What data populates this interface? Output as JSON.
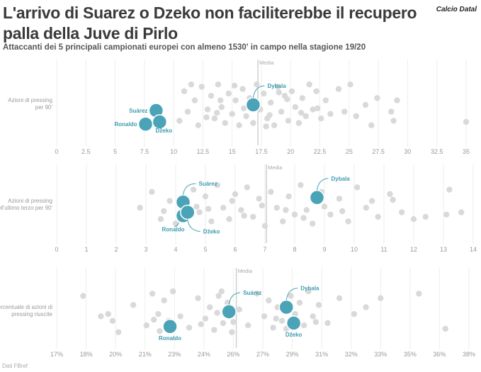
{
  "title": "L'arrivo di Suarez o Dzeko non faciliterebbe il recupero palla della Juve di Pirlo",
  "subtitle": "Attaccanti dei 5 principali campionati europei con almeno 1530' in campo nella stagione 19/20",
  "brand": "Calcio Datal",
  "source": "Dati FBref",
  "colors": {
    "accent": "#4aa3b6",
    "accent_stroke": "#ffffff",
    "dot": "#d9d9d9",
    "median": "#cfcfcf",
    "grid": "#eeeeee"
  },
  "chart_data": [
    {
      "type": "scatter",
      "ylabel": "Azioni di pressing per 90'",
      "median_label": "Media",
      "median": 17.2,
      "xlim": [
        0,
        35
      ],
      "ticks": [
        0,
        2.5,
        5,
        7.5,
        10,
        12.5,
        15,
        17.5,
        20,
        22.5,
        25,
        27.5,
        30,
        32.5,
        35
      ],
      "tick_labels": [
        "0",
        "2.5",
        "5",
        "7.5",
        "10",
        "12.5",
        "15",
        "17.5",
        "20",
        "22.5",
        "25",
        "27.5",
        "30",
        "32.5",
        "35"
      ],
      "highlights": [
        {
          "name": "Dybala",
          "x": 16.8,
          "jitter": 0.0
        },
        {
          "name": "Suárez",
          "x": 8.5,
          "jitter": 0.25
        },
        {
          "name": "Ronaldo",
          "x": 7.6,
          "jitter": 0.85
        },
        {
          "name": "Džeko",
          "x": 8.8,
          "jitter": 0.75
        }
      ],
      "others": [
        [
          10.9,
          -0.6
        ],
        [
          11.2,
          0.3
        ],
        [
          10.5,
          0.7
        ],
        [
          11.8,
          -0.2
        ],
        [
          12.1,
          0.9
        ],
        [
          12.4,
          -0.8
        ],
        [
          12.9,
          0.2
        ],
        [
          13.2,
          -0.4
        ],
        [
          13.5,
          0.6
        ],
        [
          13.8,
          -0.9
        ],
        [
          14.1,
          0.1
        ],
        [
          14.4,
          0.8
        ],
        [
          14.7,
          -0.5
        ],
        [
          15.0,
          0.4
        ],
        [
          15.3,
          -0.2
        ],
        [
          15.6,
          0.9
        ],
        [
          15.9,
          -0.7
        ],
        [
          16.2,
          0.5
        ],
        [
          16.5,
          -0.3
        ],
        [
          16.8,
          0.8
        ],
        [
          17.1,
          -0.9
        ],
        [
          17.4,
          0.2
        ],
        [
          17.7,
          -0.5
        ],
        [
          18.0,
          0.6
        ],
        [
          18.3,
          -0.1
        ],
        [
          18.6,
          0.9
        ],
        [
          18.9,
          -0.8
        ],
        [
          19.2,
          0.3
        ],
        [
          19.5,
          -0.4
        ],
        [
          19.8,
          0.7
        ],
        [
          20.1,
          -0.6
        ],
        [
          20.4,
          0.1
        ],
        [
          20.7,
          0.8
        ],
        [
          21.0,
          -0.3
        ],
        [
          21.3,
          0.5
        ],
        [
          21.6,
          -0.9
        ],
        [
          21.9,
          0.2
        ],
        [
          22.2,
          -0.6
        ],
        [
          22.6,
          0.6
        ],
        [
          23.0,
          -0.2
        ],
        [
          23.4,
          0.4
        ],
        [
          24.1,
          -0.7
        ],
        [
          24.6,
          0.3
        ],
        [
          25.1,
          -0.9
        ],
        [
          25.6,
          0.5
        ],
        [
          26.4,
          0.0
        ],
        [
          26.9,
          0.9
        ],
        [
          27.4,
          -0.3
        ],
        [
          28.6,
          0.3
        ],
        [
          28.8,
          0.7
        ],
        [
          29.1,
          -0.2
        ],
        [
          35.0,
          0.75
        ],
        [
          14.0,
          -0.2
        ],
        [
          16.0,
          0.15
        ],
        [
          18.2,
          0.45
        ],
        [
          19.0,
          -0.55
        ],
        [
          12.8,
          0.55
        ],
        [
          15.2,
          -0.85
        ],
        [
          17.9,
          0.95
        ],
        [
          20.9,
          0.35
        ],
        [
          13.7,
          0.35
        ],
        [
          19.7,
          -0.25
        ],
        [
          22.3,
          0.15
        ],
        [
          11.5,
          -0.9
        ]
      ]
    },
    {
      "type": "scatter",
      "ylabel": "Azioni di pressing nell'ultimo terzo per 90'",
      "median_label": "Media",
      "median": 7.05,
      "xlim": [
        0,
        14
      ],
      "ticks": [
        0,
        1,
        2,
        3,
        4,
        5,
        6,
        7,
        8,
        9,
        10,
        11,
        12,
        13,
        14
      ],
      "tick_labels": [
        "0",
        "1",
        "2",
        "3",
        "4",
        "5",
        "6",
        "7",
        "8",
        "9",
        "10",
        "11",
        "12",
        "13",
        "14"
      ],
      "highlights": [
        {
          "name": "Dybala",
          "x": 8.75,
          "jitter": -0.35
        },
        {
          "name": "Suárez",
          "x": 4.25,
          "jitter": -0.15
        },
        {
          "name": "Ronaldo",
          "x": 4.25,
          "jitter": 0.45
        },
        {
          "name": "Džeko",
          "x": 4.4,
          "jitter": 0.3
        }
      ],
      "others": [
        [
          2.8,
          0.1
        ],
        [
          3.2,
          -0.6
        ],
        [
          3.5,
          0.6
        ],
        [
          3.8,
          -0.2
        ],
        [
          4.0,
          0.8
        ],
        [
          4.6,
          -0.7
        ],
        [
          4.8,
          0.3
        ],
        [
          5.0,
          -0.4
        ],
        [
          5.2,
          0.7
        ],
        [
          5.4,
          -0.9
        ],
        [
          5.6,
          0.1
        ],
        [
          5.8,
          0.6
        ],
        [
          6.0,
          -0.5
        ],
        [
          6.2,
          0.2
        ],
        [
          6.4,
          -0.8
        ],
        [
          6.6,
          0.5
        ],
        [
          6.8,
          -0.3
        ],
        [
          7.0,
          0.9
        ],
        [
          7.2,
          -0.6
        ],
        [
          7.4,
          0.1
        ],
        [
          7.6,
          0.7
        ],
        [
          7.8,
          -0.4
        ],
        [
          8.0,
          0.4
        ],
        [
          8.2,
          -0.9
        ],
        [
          8.4,
          0.2
        ],
        [
          8.6,
          0.8
        ],
        [
          8.9,
          -0.6
        ],
        [
          9.2,
          0.4
        ],
        [
          9.5,
          -0.3
        ],
        [
          9.8,
          0.7
        ],
        [
          10.1,
          -0.8
        ],
        [
          10.4,
          0.1
        ],
        [
          10.8,
          0.5
        ],
        [
          11.2,
          -0.5
        ],
        [
          11.6,
          0.3
        ],
        [
          12.0,
          0.6
        ],
        [
          12.4,
          0.5
        ],
        [
          13.1,
          0.4
        ],
        [
          13.2,
          -0.7
        ],
        [
          13.6,
          0.3
        ],
        [
          5.1,
          0.15
        ],
        [
          6.3,
          0.45
        ],
        [
          7.7,
          0.2
        ],
        [
          9.0,
          0.05
        ],
        [
          5.9,
          -0.2
        ],
        [
          3.6,
          0.25
        ],
        [
          8.3,
          0.55
        ],
        [
          10.6,
          -0.2
        ],
        [
          6.9,
          0.0
        ],
        [
          4.7,
          0.05
        ],
        [
          9.6,
          0.25
        ],
        [
          11.3,
          -0.25
        ]
      ]
    },
    {
      "type": "scatter",
      "ylabel": "Percentuale di azioni di pressing riuscite",
      "median_label": "Media",
      "median": 26.1,
      "xlim": [
        17,
        38
      ],
      "ticks": [
        17,
        18,
        20,
        21,
        23,
        24,
        26,
        27,
        29,
        31,
        32,
        33,
        35,
        36,
        38
      ],
      "tick_labels": [
        "17%",
        "18%",
        "20%",
        "21%",
        "23%",
        "24%",
        "26%",
        "27%",
        "29%",
        "31%",
        "32%",
        "33%",
        "35%",
        "36%",
        "38%"
      ],
      "highlights": [
        {
          "name": "Suárez",
          "x": 25.7,
          "jitter": 0.0
        },
        {
          "name": "Dybala",
          "x": 28.6,
          "jitter": -0.2
        },
        {
          "name": "Ronaldo",
          "x": 22.7,
          "jitter": 0.65
        },
        {
          "name": "Džeko",
          "x": 29.1,
          "jitter": 0.5
        }
      ],
      "others": [
        [
          17.9,
          -0.7
        ],
        [
          19.0,
          0.2
        ],
        [
          19.8,
          0.4
        ],
        [
          20.1,
          0.9
        ],
        [
          20.6,
          -0.3
        ],
        [
          21.1,
          0.6
        ],
        [
          21.5,
          -0.8
        ],
        [
          21.9,
          0.1
        ],
        [
          22.3,
          -0.5
        ],
        [
          22.6,
          0.4
        ],
        [
          22.9,
          -0.9
        ],
        [
          23.2,
          0.2
        ],
        [
          23.5,
          0.7
        ],
        [
          23.8,
          -0.6
        ],
        [
          24.1,
          0.3
        ],
        [
          24.4,
          -0.2
        ],
        [
          24.7,
          0.8
        ],
        [
          25.0,
          -0.7
        ],
        [
          25.3,
          0.5
        ],
        [
          25.6,
          -0.4
        ],
        [
          25.9,
          0.9
        ],
        [
          26.2,
          -0.1
        ],
        [
          26.5,
          0.6
        ],
        [
          26.8,
          -0.8
        ],
        [
          27.1,
          0.2
        ],
        [
          27.4,
          -0.5
        ],
        [
          27.7,
          0.7
        ],
        [
          28.0,
          -0.2
        ],
        [
          28.3,
          0.4
        ],
        [
          28.9,
          -0.7
        ],
        [
          29.2,
          0.1
        ],
        [
          29.5,
          -0.4
        ],
        [
          29.8,
          0.6
        ],
        [
          30.1,
          -0.9
        ],
        [
          30.4,
          0.2
        ],
        [
          30.8,
          -0.3
        ],
        [
          31.2,
          0.5
        ],
        [
          31.6,
          -0.6
        ],
        [
          32.1,
          0.1
        ],
        [
          32.5,
          -0.2
        ],
        [
          33.0,
          -0.6
        ],
        [
          35.3,
          -0.8
        ],
        [
          36.4,
          0.75
        ],
        [
          19.5,
          0.1
        ],
        [
          22.0,
          0.85
        ],
        [
          24.9,
          0.05
        ],
        [
          27.9,
          0.3
        ],
        [
          26.0,
          0.45
        ],
        [
          23.9,
          0.55
        ],
        [
          28.6,
          0.75
        ],
        [
          30.6,
          0.45
        ],
        [
          21.6,
          0.35
        ],
        [
          25.2,
          -0.9
        ]
      ]
    }
  ]
}
